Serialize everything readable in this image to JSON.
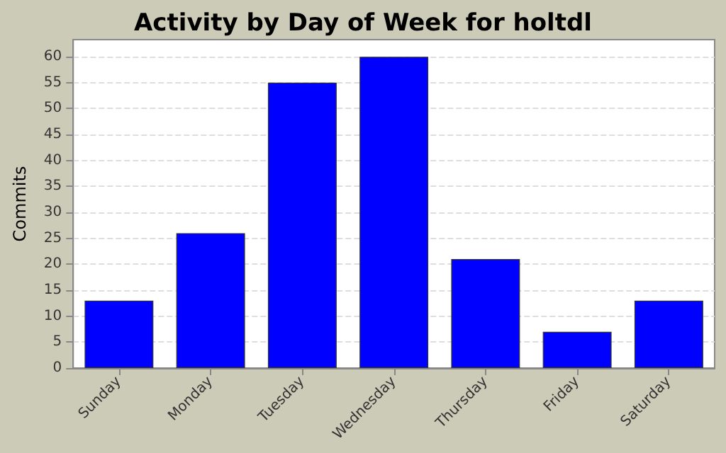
{
  "chart_data": {
    "type": "bar",
    "title": "Activity by Day of Week for holtdl",
    "ylabel": "Commits",
    "categories": [
      "Sunday",
      "Monday",
      "Tuesday",
      "Wednesday",
      "Thursday",
      "Friday",
      "Saturday"
    ],
    "values": [
      13,
      26,
      55,
      60,
      21,
      7,
      13
    ],
    "color": "#0000ff",
    "ylim": [
      0,
      63.3
    ],
    "yticks": [
      0,
      5,
      10,
      15,
      20,
      25,
      30,
      35,
      40,
      45,
      50,
      55,
      60
    ],
    "grid": "y"
  }
}
